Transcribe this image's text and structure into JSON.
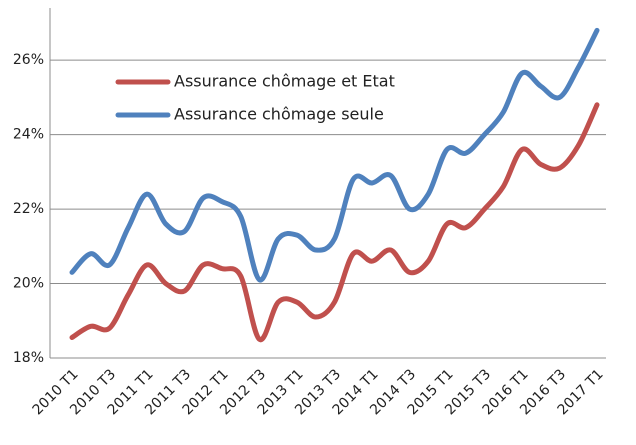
{
  "chart_data": {
    "type": "line",
    "categories": [
      "2010 T1",
      null,
      "2010 T3",
      null,
      "2011 T1",
      null,
      "2011 T3",
      null,
      "2012 T1",
      null,
      "2012 T3",
      null,
      "2013 T1",
      null,
      "2013 T3",
      null,
      "2014 T1",
      null,
      "2014 T3",
      null,
      "2015 T1",
      null,
      "2015 T3",
      null,
      "2016 T1",
      null,
      "2016 T3",
      null,
      "2017 T1"
    ],
    "series": [
      {
        "name": "Assurance chômage et Etat",
        "color": "#c0504d",
        "values": [
          18.55,
          18.85,
          18.8,
          19.7,
          20.5,
          20.0,
          19.8,
          20.5,
          20.4,
          20.2,
          18.5,
          19.5,
          19.5,
          19.1,
          19.5,
          20.8,
          20.6,
          20.9,
          20.3,
          20.6,
          21.6,
          21.5,
          22.0,
          22.6,
          23.6,
          23.2,
          23.1,
          23.7,
          24.8
        ]
      },
      {
        "name": "Assurance chômage seule",
        "color": "#4f81bd",
        "values": [
          20.3,
          20.8,
          20.5,
          21.5,
          22.4,
          21.6,
          21.4,
          22.3,
          22.2,
          21.8,
          20.1,
          21.2,
          21.3,
          20.9,
          21.2,
          22.8,
          22.7,
          22.9,
          22.0,
          22.4,
          23.6,
          23.5,
          24.0,
          24.6,
          25.65,
          25.3,
          25.0,
          25.8,
          26.8
        ]
      }
    ],
    "ylim": [
      18,
      27.4
    ],
    "yticks": [
      {
        "value": 18,
        "label": "18%"
      },
      {
        "value": 20,
        "label": "20%"
      },
      {
        "value": 22,
        "label": "22%"
      },
      {
        "value": 24,
        "label": "24%"
      },
      {
        "value": 26,
        "label": "26%"
      }
    ],
    "grid": true,
    "legend": "upper left"
  }
}
